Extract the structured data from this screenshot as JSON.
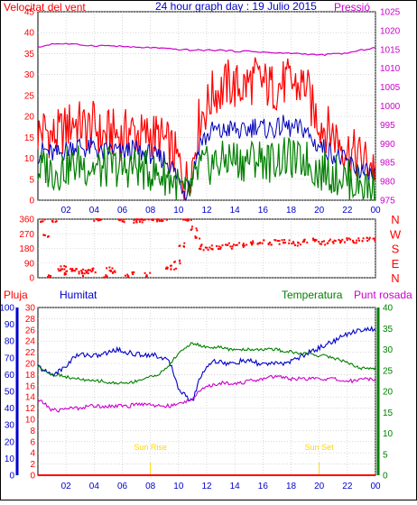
{
  "header": {
    "title": "24 hour graph day : 19 Julio 2015",
    "left_label": "Velocitat del vent",
    "right_label": "Pressió"
  },
  "colors": {
    "wind_gust": "#ff0000",
    "wind_avg": "#0000bb",
    "wind_min": "#008000",
    "pressure": "#cc00cc",
    "direction": "#ff0000",
    "rain": "#ff0000",
    "humidity": "#0000cc",
    "temperature": "#008000",
    "dewpoint": "#cc00cc",
    "sun": "#ffd700",
    "title": "#0000cc",
    "grid": "#c0c0c0"
  },
  "chart_data": [
    {
      "type": "line",
      "x_ticks": [
        "02",
        "04",
        "06",
        "08",
        "10",
        "12",
        "14",
        "16",
        "18",
        "20",
        "22",
        "00"
      ],
      "xlim": [
        0,
        24
      ],
      "left_axis": {
        "label": "Velocitat del vent",
        "ylim": [
          0,
          45
        ],
        "ticks": [
          0,
          5,
          10,
          15,
          20,
          25,
          30,
          35,
          40,
          45
        ]
      },
      "right_axis": {
        "label": "Pressió",
        "ylim": [
          975,
          1025
        ],
        "ticks": [
          975,
          980,
          985,
          990,
          995,
          1000,
          1005,
          1010,
          1015,
          1020,
          1025
        ]
      },
      "series": [
        {
          "axis": "left",
          "x": [
            0,
            0.5,
            1,
            1.5,
            2,
            2.5,
            3,
            3.5,
            4,
            4.5,
            5,
            5.5,
            6,
            6.5,
            7,
            7.5,
            8,
            8.5,
            9,
            9.5,
            10,
            10.5,
            11,
            11.5,
            12,
            12.5,
            13,
            13.5,
            14,
            14.5,
            15,
            15.5,
            16,
            16.5,
            17,
            17.5,
            18,
            18.5,
            19,
            19.5,
            20,
            20.5,
            21,
            21.5,
            22,
            22.5,
            23,
            23.5,
            24
          ],
          "y": [
            16,
            17,
            15,
            16,
            17,
            19,
            18,
            17,
            18,
            15,
            16,
            16,
            15,
            17,
            16,
            15,
            16,
            15,
            14,
            12,
            9,
            4,
            9,
            20,
            22,
            26,
            26,
            28,
            27,
            27,
            28,
            29,
            28,
            27,
            27,
            28,
            28,
            27,
            28,
            22,
            19,
            17,
            16,
            14,
            12,
            11,
            10,
            9,
            8
          ]
        },
        {
          "axis": "left",
          "x": [
            0,
            0.5,
            1,
            1.5,
            2,
            2.5,
            3,
            3.5,
            4,
            4.5,
            5,
            5.5,
            6,
            6.5,
            7,
            7.5,
            8,
            8.5,
            9,
            9.5,
            10,
            10.5,
            11,
            11.5,
            12,
            12.5,
            13,
            13.5,
            14,
            14.5,
            15,
            15.5,
            16,
            16.5,
            17,
            17.5,
            18,
            18.5,
            19,
            19.5,
            20,
            20.5,
            21,
            21.5,
            22,
            22.5,
            23,
            23.5,
            24
          ],
          "y": [
            11,
            12,
            11,
            11,
            12,
            13,
            13,
            12,
            13,
            11,
            12,
            12,
            11,
            12,
            12,
            11,
            11,
            10,
            10,
            8,
            5,
            2,
            6,
            14,
            15,
            17,
            16,
            17,
            17,
            16,
            17,
            18,
            17,
            17,
            17,
            18,
            17,
            17,
            17,
            14,
            13,
            12,
            11,
            10,
            9,
            8,
            7,
            6,
            6
          ]
        },
        {
          "axis": "left",
          "x": [
            0,
            0.5,
            1,
            1.5,
            2,
            2.5,
            3,
            3.5,
            4,
            4.5,
            5,
            5.5,
            6,
            6.5,
            7,
            7.5,
            8,
            8.5,
            9,
            9.5,
            10,
            10.5,
            11,
            11.5,
            12,
            12.5,
            13,
            13.5,
            14,
            14.5,
            15,
            15.5,
            16,
            16.5,
            17,
            17.5,
            18,
            18.5,
            19,
            19.5,
            20,
            20.5,
            21,
            21.5,
            22,
            22.5,
            23,
            23.5,
            24
          ],
          "y": [
            7,
            8,
            7,
            7,
            8,
            8,
            9,
            8,
            8,
            7,
            8,
            8,
            7,
            8,
            8,
            7,
            7,
            6,
            6,
            5,
            3,
            1,
            3,
            8,
            8,
            9,
            9,
            10,
            10,
            9,
            10,
            10,
            10,
            9,
            10,
            10,
            10,
            9,
            10,
            8,
            7,
            7,
            6,
            6,
            5,
            4,
            4,
            3,
            3
          ]
        },
        {
          "axis": "right",
          "x": [
            0,
            1,
            2,
            3,
            4,
            5,
            6,
            7,
            8,
            9,
            10,
            11,
            12,
            13,
            14,
            15,
            16,
            17,
            18,
            19,
            20,
            21,
            22,
            23,
            24
          ],
          "y": [
            1015.5,
            1016.5,
            1016.5,
            1016.2,
            1016.0,
            1016.0,
            1015.8,
            1015.5,
            1015.5,
            1015.2,
            1015.0,
            1014.8,
            1014.8,
            1014.8,
            1014.5,
            1014.5,
            1014.3,
            1014.0,
            1014.0,
            1013.8,
            1013.5,
            1013.8,
            1014.0,
            1014.8,
            1015.5
          ]
        }
      ]
    },
    {
      "type": "scatter",
      "xlim": [
        0,
        24
      ],
      "y_ticks": [
        0,
        90,
        180,
        270,
        360
      ],
      "y_compass": [
        "N",
        "W",
        "S",
        "E",
        "N"
      ],
      "ylim": [
        0,
        360
      ],
      "x": [
        0.3,
        0.6,
        0.9,
        1.2,
        1.5,
        1.8,
        2.1,
        2.4,
        2.7,
        3.0,
        3.3,
        3.6,
        3.9,
        4.2,
        4.5,
        4.8,
        5.1,
        5.4,
        5.7,
        6.0,
        6.3,
        6.6,
        6.9,
        7.2,
        7.5,
        7.8,
        8.1,
        8.4,
        8.7,
        9.0,
        9.3,
        9.6,
        9.9,
        10.2,
        10.5,
        10.8,
        11.1,
        11.4,
        11.7,
        12.0,
        12.5,
        13.0,
        13.5,
        14.0,
        14.5,
        15.0,
        15.5,
        16.0,
        16.5,
        17.0,
        17.5,
        18.0,
        18.5,
        19.0,
        19.5,
        20.0,
        20.5,
        21.0,
        21.5,
        22.0,
        22.5,
        23.0,
        23.5,
        23.9
      ],
      "y": [
        355,
        250,
        10,
        340,
        40,
        60,
        30,
        45,
        50,
        20,
        40,
        35,
        45,
        360,
        355,
        10,
        55,
        40,
        360,
        355,
        15,
        20,
        350,
        355,
        360,
        20,
        360,
        360,
        355,
        360,
        50,
        60,
        100,
        200,
        360,
        350,
        300,
        240,
        190,
        180,
        185,
        190,
        200,
        190,
        200,
        210,
        215,
        220,
        215,
        220,
        225,
        220,
        210,
        225,
        230,
        220,
        215,
        225,
        220,
        230,
        225,
        230,
        235,
        240
      ]
    },
    {
      "type": "line",
      "x_ticks": [
        "02",
        "04",
        "06",
        "08",
        "10",
        "12",
        "14",
        "16",
        "18",
        "20",
        "22",
        "00"
      ],
      "xlim": [
        0,
        24
      ],
      "legend": [
        "Pluja",
        "Humitat",
        "Temperatura",
        "Punt rosada"
      ],
      "rain_axis": {
        "label": "Pluja",
        "ylim": [
          0,
          30
        ],
        "ticks": [
          0,
          2,
          4,
          6,
          8,
          10,
          12,
          14,
          16,
          18,
          20,
          22,
          24,
          26,
          28,
          30
        ]
      },
      "humidity_axis": {
        "label": "Humitat",
        "ylim": [
          0,
          100
        ],
        "ticks": [
          0,
          10,
          20,
          30,
          40,
          50,
          60,
          70,
          80,
          90,
          100
        ]
      },
      "temp_axis": {
        "label": "Temperatura",
        "ylim": [
          0,
          40
        ],
        "ticks": [
          0,
          5,
          10,
          15,
          20,
          25,
          30,
          35,
          40
        ]
      },
      "annotations": [
        {
          "text": "Sun Rise",
          "x": 8.0
        },
        {
          "text": "Sun Set",
          "x": 20.0
        }
      ],
      "series": [
        {
          "axis": "rain",
          "x": [
            0,
            24
          ],
          "y": [
            0,
            0
          ]
        },
        {
          "axis": "humidity",
          "x": [
            0,
            0.5,
            1,
            1.5,
            2,
            2.5,
            3,
            3.5,
            4,
            4.5,
            5,
            5.5,
            6,
            6.5,
            7,
            7.5,
            8,
            8.5,
            9,
            9.5,
            10,
            10.5,
            11,
            11.5,
            12,
            12.5,
            13,
            13.5,
            14,
            14.5,
            15,
            15.5,
            16,
            16.5,
            17,
            17.5,
            18,
            18.5,
            19,
            19.5,
            20,
            20.5,
            21,
            21.5,
            22,
            22.5,
            23,
            23.5,
            24
          ],
          "y": [
            65,
            62,
            60,
            62,
            65,
            70,
            72,
            72,
            71,
            72,
            73,
            75,
            74,
            73,
            72,
            72,
            72,
            71,
            70,
            65,
            52,
            47,
            44,
            58,
            65,
            68,
            68,
            66,
            67,
            68,
            68,
            67,
            66,
            67,
            66,
            67,
            68,
            70,
            72,
            74,
            76,
            78,
            80,
            82,
            84,
            86,
            87,
            87,
            87
          ]
        },
        {
          "axis": "temp",
          "x": [
            0,
            0.5,
            1,
            1.5,
            2,
            2.5,
            3,
            3.5,
            4,
            4.5,
            5,
            5.5,
            6,
            6.5,
            7,
            7.5,
            8,
            8.5,
            9,
            9.5,
            10,
            10.5,
            11,
            11.5,
            12,
            12.5,
            13,
            13.5,
            14,
            14.5,
            15,
            15.5,
            16,
            16.5,
            17,
            17.5,
            18,
            18.5,
            19,
            19.5,
            20,
            20.5,
            21,
            21.5,
            22,
            22.5,
            23,
            23.5,
            24
          ],
          "y": [
            26,
            25,
            24,
            24,
            23.5,
            23,
            23,
            22.5,
            22.5,
            22.5,
            22,
            22,
            22,
            22,
            22.5,
            23,
            23.5,
            24,
            25,
            27,
            29,
            30.5,
            31.5,
            31,
            30.5,
            30.5,
            30.5,
            30,
            30,
            30,
            30,
            30,
            30,
            30,
            30,
            29.5,
            29.5,
            29,
            29,
            29,
            28.5,
            28.5,
            28,
            27.5,
            27,
            26,
            25.5,
            25.5,
            25.5
          ]
        },
        {
          "axis": "temp",
          "x": [
            0,
            0.5,
            1,
            1.5,
            2,
            2.5,
            3,
            3.5,
            4,
            4.5,
            5,
            5.5,
            6,
            6.5,
            7,
            7.5,
            8,
            8.5,
            9,
            9.5,
            10,
            10.5,
            11,
            11.5,
            12,
            12.5,
            13,
            13.5,
            14,
            14.5,
            15,
            15.5,
            16,
            16.5,
            17,
            17.5,
            18,
            18.5,
            19,
            19.5,
            20,
            20.5,
            21,
            21.5,
            22,
            22.5,
            23,
            23.5,
            24
          ],
          "y": [
            18,
            17,
            15.5,
            15.5,
            16,
            16,
            16,
            16.5,
            16.5,
            16.5,
            16.5,
            16.5,
            16.5,
            16.5,
            17,
            17,
            17,
            16.5,
            16.5,
            16.5,
            17,
            17.5,
            18.5,
            20,
            21,
            21.5,
            22,
            22,
            22,
            22,
            22.5,
            22.5,
            23,
            23.5,
            23.5,
            23.5,
            23,
            23,
            23,
            23,
            23,
            23,
            23,
            22.5,
            22.5,
            22.5,
            23,
            23,
            23
          ]
        }
      ]
    }
  ]
}
